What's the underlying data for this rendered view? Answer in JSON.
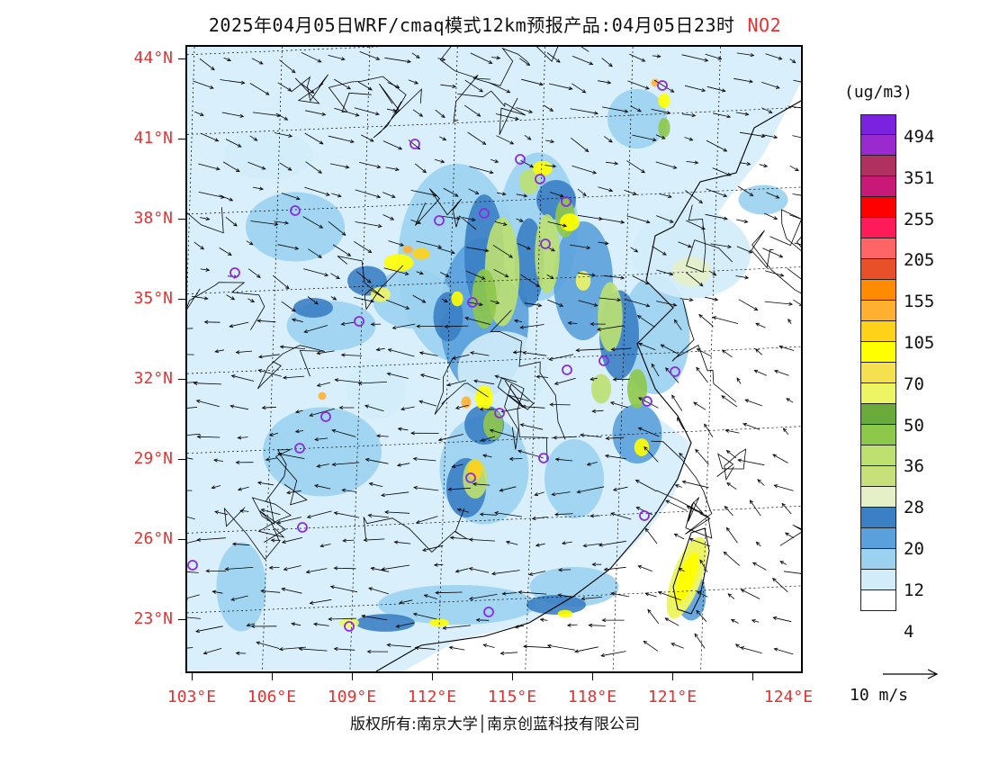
{
  "header": {
    "title": "2025年04月05日WRF/cmaq模式12km预报产品:04月05日23时",
    "pollutant": "NO2"
  },
  "map": {
    "lat_labels": [
      "44°N",
      "41°N",
      "38°N",
      "35°N",
      "32°N",
      "29°N",
      "26°N",
      "23°N"
    ],
    "lon_labels": [
      "103°E",
      "106°E",
      "109°E",
      "112°E",
      "115°E",
      "118°E",
      "121°E",
      "124°E"
    ],
    "lat_range": [
      21.0,
      44.5
    ],
    "lon_range": [
      103.0,
      124.0
    ],
    "city_markers_color": "#8a2be2",
    "wind_vector_color": "#000000"
  },
  "legend": {
    "unit": "(ug/m3)",
    "colors": [
      "#7b22e0",
      "#9a2ad0",
      "#b03060",
      "#c81878",
      "#ff0000",
      "#ff1a5a",
      "#ff6466",
      "#e8502a",
      "#ff8c00",
      "#ffb030",
      "#ffd21a",
      "#ffff00",
      "#f5e050",
      "#eef565",
      "#6aaa3a",
      "#8ec84a",
      "#bde070",
      "#c8e07a",
      "#e6f0c8",
      "#3b7fc4",
      "#5aa0dc",
      "#9ad2f0",
      "#d2ecfa",
      "#ffffff"
    ],
    "labels": [
      "494",
      "351",
      "255",
      "205",
      "155",
      "105",
      "70",
      "50",
      "36",
      "28",
      "20",
      "12",
      "4"
    ]
  },
  "wind_key": {
    "label": "10 m/s"
  },
  "footer": {
    "copyright": "版权所有:南京大学│南京创蓝科技有限公司"
  }
}
